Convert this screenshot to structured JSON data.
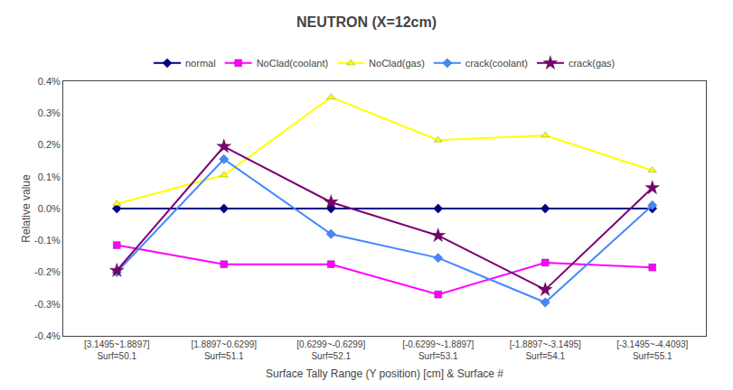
{
  "chart_data": {
    "type": "line",
    "title": "NEUTRON (X=12cm)",
    "x_label": "Surface Tally Range (Y position) [cm] & Surface #",
    "y_label": "Relative value",
    "categories": [
      "[3.1495~1.8897]\nSurf=50.1",
      "[1.8897~0.6299]\nSurf=51.1",
      "[0.6299~-0.6299]\nSurf=52.1",
      "[-0.6299~-1.8897]\nSurf=53.1",
      "[-1.8897~-3.1495]\nSurf=54.1",
      "[-3.1495~-4.4093]\nSurf=55.1"
    ],
    "series": [
      {
        "name": "normal",
        "color": "#00008B",
        "marker": "diamond",
        "values": [
          0.0,
          0.0,
          0.0,
          0.0,
          0.0,
          0.0
        ]
      },
      {
        "name": "NoClad(coolant)",
        "color": "#FF00FF",
        "marker": "square",
        "values": [
          -0.00115,
          -0.00175,
          -0.00175,
          -0.0027,
          -0.0017,
          -0.00185
        ]
      },
      {
        "name": "NoClad(gas)",
        "color": "#FFFF00",
        "marker": "triangle-up",
        "values": [
          0.00015,
          0.00105,
          0.0035,
          0.00215,
          0.0023,
          0.0012
        ]
      },
      {
        "name": "crack(coolant)",
        "color": "#4488FF",
        "marker": "diamond",
        "values": [
          -0.002,
          0.00155,
          -0.0008,
          -0.00155,
          -0.00295,
          0.0001
        ]
      },
      {
        "name": "crack(gas)",
        "color": "#7B0070",
        "marker": "star",
        "values": [
          -0.00195,
          0.00195,
          0.0002,
          -0.00085,
          -0.00255,
          0.00065
        ]
      }
    ],
    "ylim": [
      -0.004,
      0.004
    ],
    "yticks": [
      {
        "value": -0.004,
        "label": "-0.4%"
      },
      {
        "value": -0.003,
        "label": "-0.3%"
      },
      {
        "value": -0.002,
        "label": "-0.2%"
      },
      {
        "value": -0.001,
        "label": "-0.1%"
      },
      {
        "value": 0.0,
        "label": "0.0%"
      },
      {
        "value": 0.001,
        "label": "0.1%"
      },
      {
        "value": 0.002,
        "label": "0.2%"
      },
      {
        "value": 0.003,
        "label": "0.3%"
      },
      {
        "value": 0.004,
        "label": "0.4%"
      }
    ],
    "grid": false,
    "legend": "top"
  }
}
